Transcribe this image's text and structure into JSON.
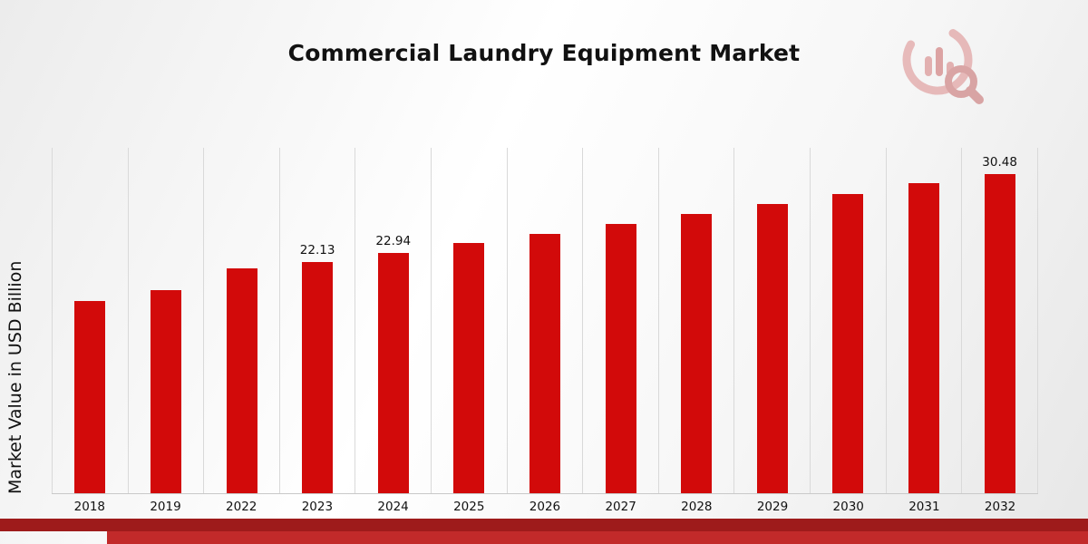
{
  "title": "Commercial Laundry Equipment Market",
  "ylabel": "Market Value in USD Billion",
  "colors": {
    "bar": "#d20a0a",
    "footer_dark": "#9e1b1b",
    "footer_light": "#c22a2a",
    "grid": "#d9d9d9",
    "logo": "#dc9a9a"
  },
  "chart_data": {
    "type": "bar",
    "title": "Commercial Laundry Equipment Market",
    "xlabel": "",
    "ylabel": "Market Value in USD Billion",
    "categories": [
      "2018",
      "2019",
      "2022",
      "2023",
      "2024",
      "2025",
      "2026",
      "2027",
      "2028",
      "2029",
      "2030",
      "2031",
      "2032"
    ],
    "values": [
      18.4,
      19.4,
      21.5,
      22.13,
      22.94,
      23.9,
      24.8,
      25.7,
      26.7,
      27.6,
      28.6,
      29.6,
      30.48
    ],
    "value_labels": [
      "",
      "",
      "",
      "22.13",
      "22.94",
      "",
      "",
      "",
      "",
      "",
      "",
      "",
      "30.48"
    ],
    "ylim": [
      0,
      33
    ],
    "grid": "vertical-only",
    "legend": "none"
  }
}
